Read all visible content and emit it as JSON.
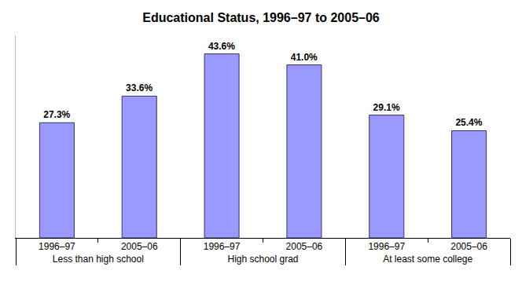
{
  "chart_data": {
    "type": "bar",
    "title": "Educational Status, 1996–97 to 2005–06",
    "categories": [
      [
        "Less than high school",
        "1996–97"
      ],
      [
        "Less than high school",
        "2005–06"
      ],
      [
        "High school grad",
        "1996–97"
      ],
      [
        "High school grad",
        "2005–06"
      ],
      [
        "At least some college",
        "1996–97"
      ],
      [
        "At least some college",
        "2005–06"
      ]
    ],
    "values": [
      27.3,
      33.6,
      43.6,
      41.0,
      29.1,
      25.4
    ],
    "value_labels": [
      "27.3%",
      "33.6%",
      "43.6%",
      "41.0%",
      "29.1%",
      "25.4%"
    ],
    "color": "#9999ff",
    "ylim": [
      0,
      48
    ],
    "yticks": [],
    "grid": false,
    "data_labels": true,
    "tick_labels": "x"
  }
}
